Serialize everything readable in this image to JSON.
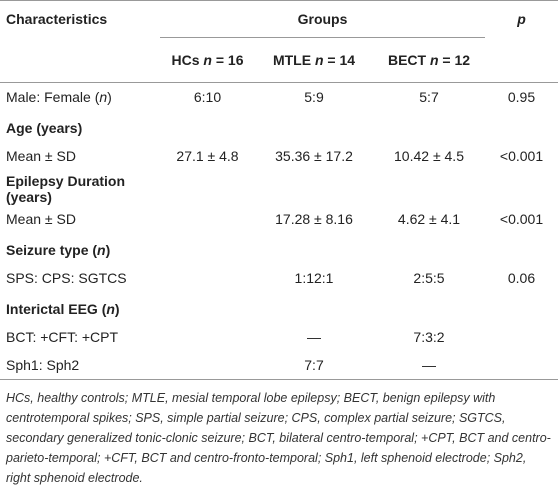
{
  "header": {
    "characteristics": "Characteristics",
    "groups": "Groups",
    "p": "p",
    "columns": [
      [
        "HCs ",
        "n",
        " = 16"
      ],
      [
        "MTLE ",
        "n",
        " = 14"
      ],
      [
        "BECT ",
        "n",
        " = 12"
      ]
    ]
  },
  "rows": [
    {
      "label": [
        "Male: Female (",
        "n",
        ")"
      ],
      "cells": [
        "6:10",
        "5:9",
        "5:7",
        "0.95"
      ]
    },
    {
      "section": [
        "Age (years)"
      ]
    },
    {
      "label": [
        "Mean ± SD"
      ],
      "cells": [
        "27.1 ± 4.8",
        "35.36 ± 17.2",
        "10.42 ± 4.5",
        "<0.001"
      ]
    },
    {
      "section": [
        "Epilepsy Duration (years)"
      ]
    },
    {
      "label": [
        "Mean ± SD"
      ],
      "cells": [
        null,
        "17.28 ± 8.16",
        "4.62 ± 4.1",
        "<0.001"
      ]
    },
    {
      "section": [
        "Seizure type (",
        "n",
        ")"
      ]
    },
    {
      "label": [
        "SPS: CPS: SGTCS"
      ],
      "cells": [
        null,
        "1:12:1",
        "2:5:5",
        "0.06"
      ]
    },
    {
      "section": [
        "Interictal EEG (",
        "n",
        ")"
      ]
    },
    {
      "label": [
        "BCT: +CFT: +CPT"
      ],
      "cells": [
        null,
        "—",
        "7:3:2",
        null
      ]
    },
    {
      "label": [
        "Sph1: Sph2"
      ],
      "cells": [
        null,
        "7:7",
        "—",
        null
      ]
    }
  ],
  "footnote": "HCs, healthy controls; MTLE, mesial temporal lobe epilepsy; BECT, benign epilepsy with centrotemporal spikes; SPS, simple partial seizure; CPS, complex partial seizure; SGTCS, secondary generalized tonic-clonic seizure; BCT, bilateral centro-temporal; +CPT, BCT and centro-parieto-temporal; +CFT, BCT and centro-fronto-temporal; Sph1, left sphenoid electrode; Sph2, right sphenoid electrode."
}
